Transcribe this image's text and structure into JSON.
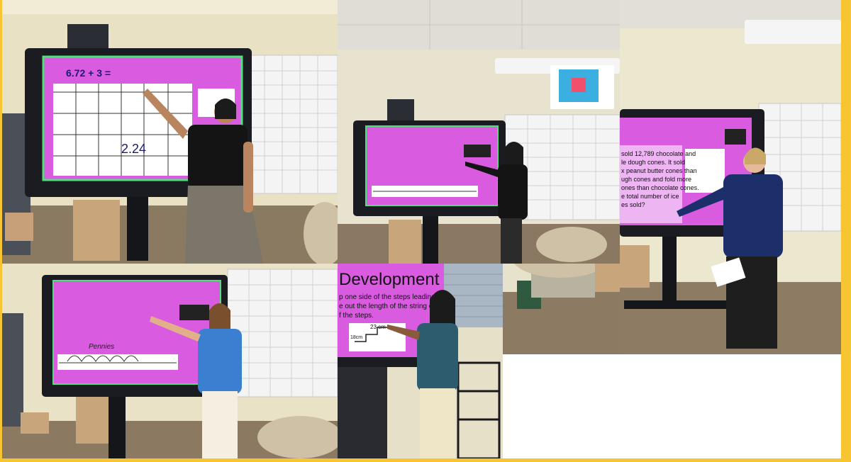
{
  "collage": {
    "colors": {
      "frame": "#f7c531",
      "screen_magenta": "#d85be0",
      "screen_bezel": "#1b1c22",
      "wall": "#ece5c8",
      "carpet": "#8c7b64",
      "calendar": "#f3f3f3"
    },
    "photos": [
      {
        "id": "photo-1",
        "screen_text": {
          "equation": "6.72 + 3 =",
          "answer": "2.24"
        }
      },
      {
        "id": "photo-2",
        "screen_text": {}
      },
      {
        "id": "photo-3",
        "screen_text": {
          "problem": [
            "sold 12,789 chocolate and",
            "le dough cones. It sold",
            "x peanut butter cones than",
            "ugh cones and fold more",
            "ones than chocolate cones.",
            "e total number of ice",
            "es sold?"
          ]
        }
      },
      {
        "id": "photo-4",
        "screen_text": {
          "word": "Pennies"
        }
      },
      {
        "id": "photo-5",
        "screen_text": {
          "title": "Development",
          "lines": [
            "p one side of the steps leading to",
            "e out the length of the string of",
            "f the steps."
          ],
          "measure_top": "23 cm",
          "measure_side": "18cm"
        }
      }
    ]
  }
}
